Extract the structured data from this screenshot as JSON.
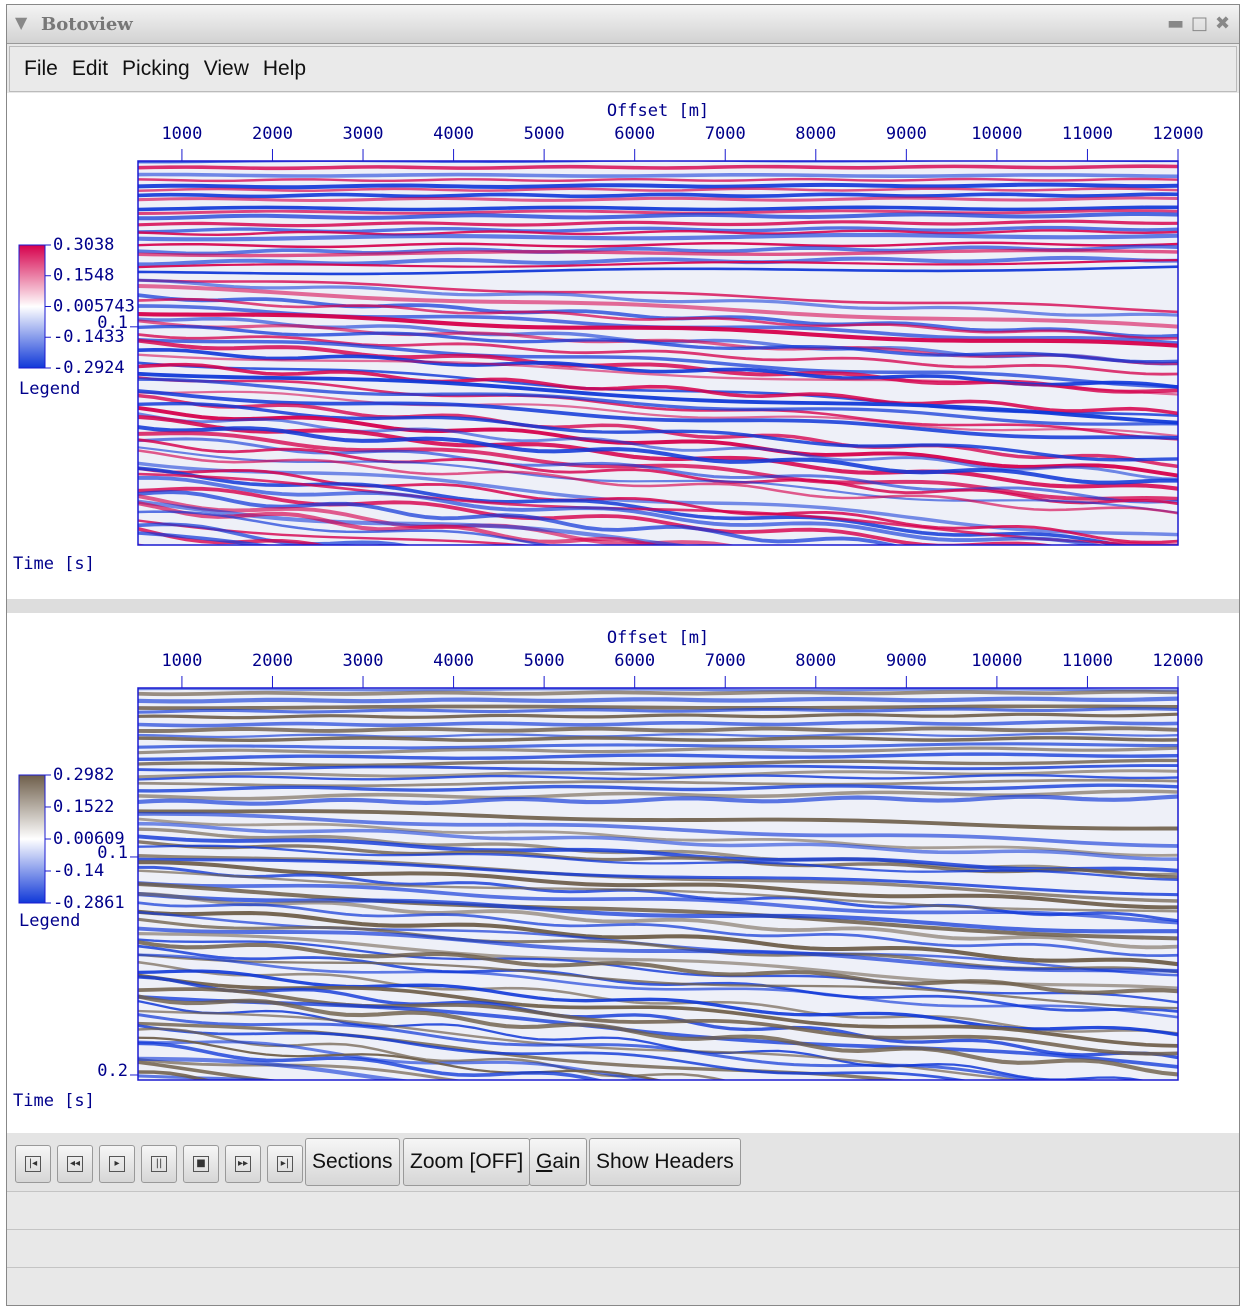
{
  "window": {
    "title": "Botoview"
  },
  "menu": [
    "File",
    "Edit",
    "Picking",
    "View",
    "Help"
  ],
  "panels": [
    {
      "x_label": "Offset [m]",
      "xlim": [
        515,
        12000
      ],
      "xticks": [
        1000,
        2000,
        3000,
        4000,
        5000,
        6000,
        7000,
        8000,
        9000,
        10000,
        11000,
        12000
      ],
      "y_label": "Time [s]",
      "ylim": [
        0.024,
        0.2
      ],
      "yticks": [
        0.1
      ],
      "legend": {
        "title": "Legend",
        "ticks": [
          0.3038,
          0.1548,
          0.005743,
          -0.1433,
          -0.2924
        ],
        "colors": [
          "#d6004c",
          "#ffffff",
          "#1038d8"
        ]
      }
    },
    {
      "x_label": "Offset [m]",
      "xlim": [
        515,
        12000
      ],
      "xticks": [
        1000,
        2000,
        3000,
        4000,
        5000,
        6000,
        7000,
        8000,
        9000,
        10000,
        11000,
        12000
      ],
      "y_label": "Time [s]",
      "ylim": [
        0.0225,
        0.2023
      ],
      "yticks": [
        0.1,
        0.2
      ],
      "legend": {
        "title": "Legend",
        "ticks": [
          0.2982,
          0.1522,
          0.00609,
          -0.14,
          -0.2861
        ],
        "colors": [
          "#6e5e4a",
          "#ffffff",
          "#1038d8"
        ]
      }
    }
  ],
  "toolbar": {
    "buttons": [
      "Sections",
      "Zoom [OFF]",
      "Gain",
      "Show Headers"
    ]
  }
}
